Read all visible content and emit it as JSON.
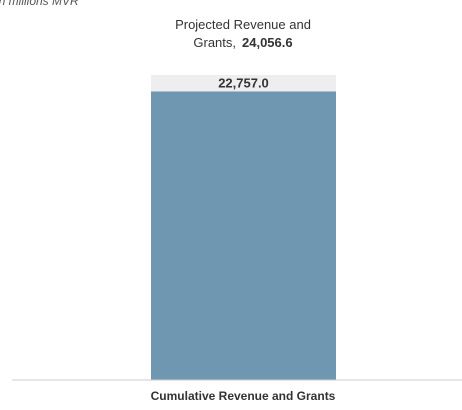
{
  "chart_data": {
    "type": "bar",
    "unit_note": "in millions MVR",
    "categories": [
      "Cumulative Revenue and Grants"
    ],
    "values": [
      22757.0
    ],
    "value_labels": [
      "22,757.0"
    ],
    "target": {
      "label_line1": "Projected Revenue and",
      "label_line2_prefix": "Grants,",
      "value": 24056.6,
      "value_label": "24,056.6"
    },
    "ylim": [
      0,
      24056.6
    ],
    "colors": {
      "bar": "#7097b1",
      "target_band": "#eeeeee",
      "baseline": "#cccccc",
      "text": "#333333",
      "note_text": "#555555"
    }
  }
}
